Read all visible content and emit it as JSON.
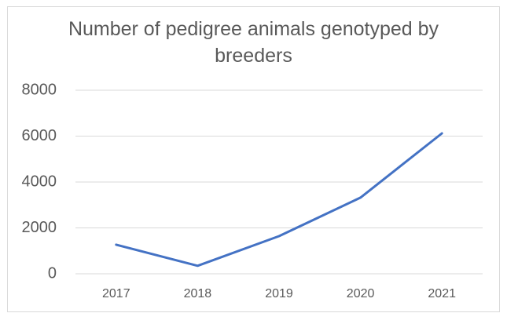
{
  "chart_data": {
    "type": "line",
    "title": "Number of pedigree animals genotyped by breeders",
    "categories": [
      "2017",
      "2018",
      "2019",
      "2020",
      "2021"
    ],
    "values": [
      1270,
      350,
      1640,
      3320,
      6120
    ],
    "color": "#4472c4",
    "ylim": [
      0,
      8000
    ],
    "yticks": [
      0,
      2000,
      4000,
      6000,
      8000
    ],
    "grid": true
  }
}
